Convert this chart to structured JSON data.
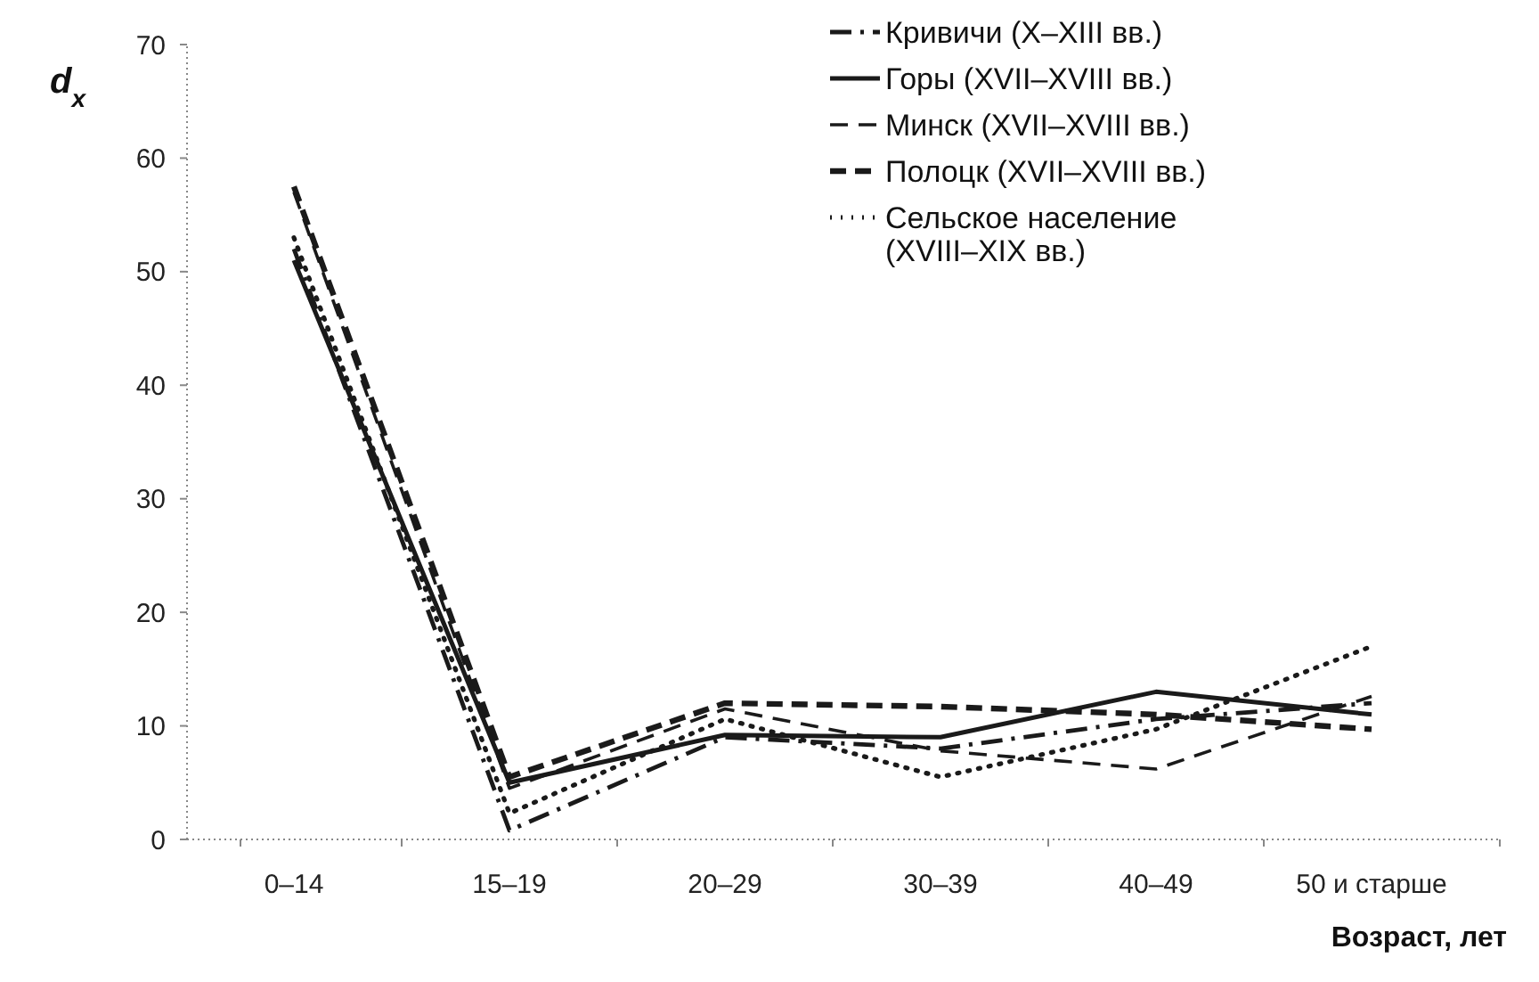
{
  "chart_data": {
    "type": "line",
    "ylabel": "d$_{x}$",
    "xlabel": "Возраст, лет",
    "categories": [
      "0–14",
      "15–19",
      "20–29",
      "30–39",
      "40–49",
      "50 и старше"
    ],
    "ylim": [
      0,
      70
    ],
    "yticks": [
      0,
      10,
      20,
      30,
      40,
      50,
      60,
      70
    ],
    "grid": false,
    "legend": "top right",
    "series": [
      {
        "name": "Кривичи (X–XIII вв.)",
        "color": "#1a1a1a",
        "line_style": "dashdot",
        "values": [
          52,
          0.8,
          9,
          8,
          10.6,
          12
        ]
      },
      {
        "name": "Горы (XVII–XVIII вв.)",
        "color": "#1a1a1a",
        "line_style": "solid",
        "values": [
          51,
          5,
          9.2,
          9,
          13,
          11
        ]
      },
      {
        "name": "Минск (XVII–XVIII вв.)",
        "color": "#1a1a1a",
        "line_style": "dashed",
        "values": [
          57,
          4.5,
          11.5,
          7.8,
          6.2,
          12.6
        ]
      },
      {
        "name": "Полоцк (XVII–XVIII вв.)",
        "color": "#1a1a1a",
        "line_style": "dashed-heavy",
        "values": [
          57.5,
          5.5,
          12,
          11.7,
          11,
          9.7
        ]
      },
      {
        "name": "Сельское население\n(XVIII–XIX вв.)",
        "color": "#1a1a1a",
        "line_style": "dotted",
        "values": [
          53,
          2.3,
          10.6,
          5.5,
          9.7,
          17
        ]
      }
    ]
  }
}
